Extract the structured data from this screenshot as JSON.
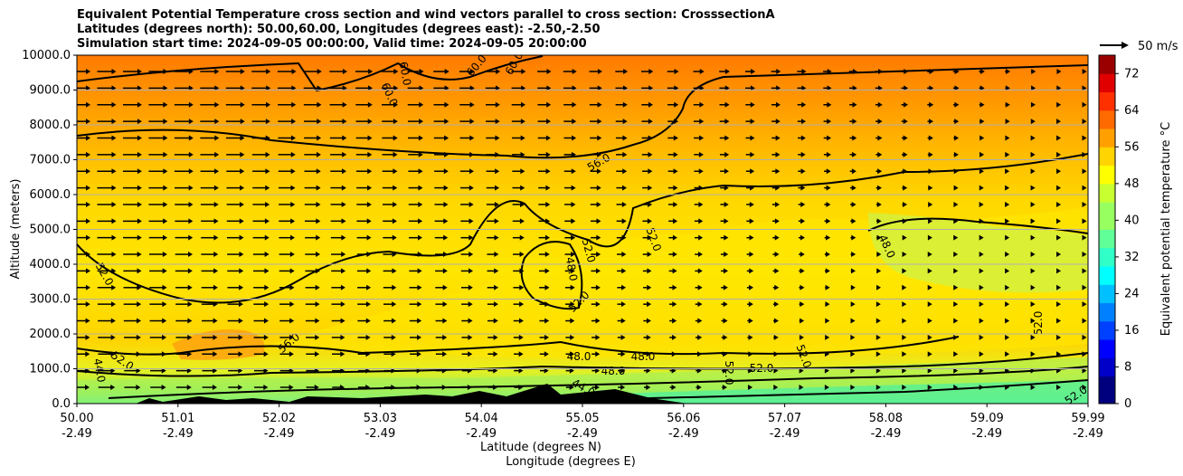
{
  "title_lines": [
    "Equivalent Potential Temperature cross section and wind vectors parallel to cross section: CrosssectionA",
    "Latitudes (degrees north): 50.00,60.00, Longitudes (degrees east): -2.50,-2.50",
    "Simulation start time: 2024-09-05 00:00:00, Valid time: 2024-09-05 20:00:00"
  ],
  "chart_data": {
    "type": "heatmap",
    "ylabel": "Altitude (meters)",
    "xlabel_lines": [
      "Latitude (degrees N)",
      "Longitude (degrees E)"
    ],
    "ylim": [
      0,
      10000
    ],
    "yticks": [
      "0.0",
      "1000.0",
      "2000.0",
      "3000.0",
      "4000.0",
      "5000.0",
      "6000.0",
      "7000.0",
      "8000.0",
      "9000.0",
      "10000.0"
    ],
    "xticks": [
      {
        "lat": "50.00",
        "lon": "-2.49"
      },
      {
        "lat": "51.01",
        "lon": "-2.49"
      },
      {
        "lat": "52.02",
        "lon": "-2.49"
      },
      {
        "lat": "53.03",
        "lon": "-2.49"
      },
      {
        "lat": "54.04",
        "lon": "-2.49"
      },
      {
        "lat": "55.05",
        "lon": "-2.49"
      },
      {
        "lat": "56.06",
        "lon": "-2.49"
      },
      {
        "lat": "57.07",
        "lon": "-2.49"
      },
      {
        "lat": "58.08",
        "lon": "-2.49"
      },
      {
        "lat": "59.09",
        "lon": "-2.49"
      },
      {
        "lat": "59.99",
        "lon": "-2.49"
      }
    ],
    "grid": "horizontal",
    "colorbar": {
      "label": "Equivalent potential temperature $^\\circ$C",
      "label_display": "Equivalent potential temperature °C",
      "ticks": [
        "0",
        "8",
        "16",
        "24",
        "32",
        "40",
        "48",
        "56",
        "64",
        "72"
      ],
      "range": [
        0,
        76
      ],
      "colormap": "jet"
    },
    "wind_key": "50 m/s",
    "contour_labels": [
      "44.0",
      "48.0",
      "52.0",
      "56.0",
      "60.0"
    ],
    "colors": {
      "upper_orange": "#ff8c00",
      "mid_yellow_orange": "#ffcc00",
      "yellow": "#ffee00",
      "lower_green": "#b6f542",
      "terrain": "#000000"
    }
  }
}
